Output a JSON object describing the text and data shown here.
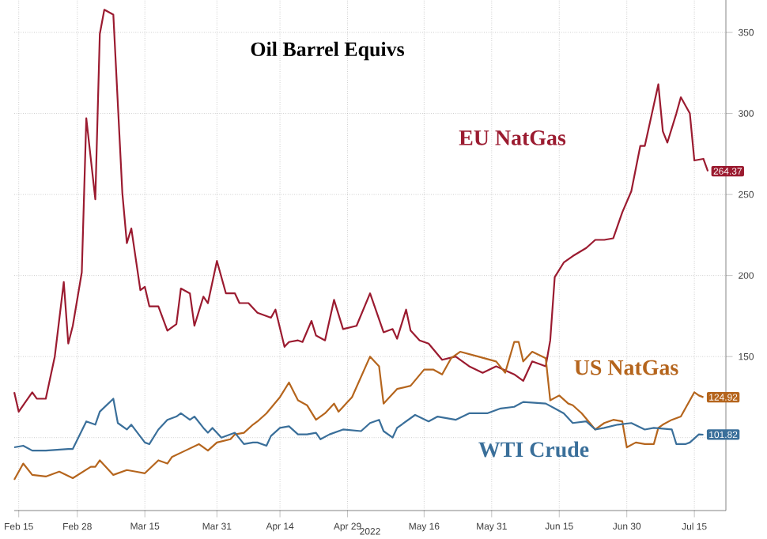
{
  "chart_data": {
    "type": "line",
    "title": "Oil Barrel Equivs",
    "xlabel": "2022",
    "grid": true,
    "line_style": "solid",
    "xlim": [
      "2022-02-14",
      "2022-07-22"
    ],
    "xticks": [
      {
        "value": "2022-02-15",
        "label": "Feb 15"
      },
      {
        "value": "2022-02-28",
        "label": "Feb 28"
      },
      {
        "value": "2022-03-15",
        "label": "Mar 15"
      },
      {
        "value": "2022-03-31",
        "label": "Mar 31"
      },
      {
        "value": "2022-04-14",
        "label": "Apr 14"
      },
      {
        "value": "2022-04-29",
        "label": "Apr 29"
      },
      {
        "value": "2022-05-16",
        "label": "May 16"
      },
      {
        "value": "2022-05-31",
        "label": "May 31"
      },
      {
        "value": "2022-06-15",
        "label": "Jun 15"
      },
      {
        "value": "2022-06-30",
        "label": "Jun 30"
      },
      {
        "value": "2022-07-15",
        "label": "Jul 15"
      }
    ],
    "ylim": [
      55,
      370
    ],
    "yticks": [
      {
        "value": 100,
        "label": null
      },
      150,
      200,
      250,
      300,
      350
    ],
    "series": [
      {
        "name": "EU NatGas",
        "color": "#9b1b30",
        "x": [
          "2022-02-14",
          "2022-02-15",
          "2022-02-18",
          "2022-02-19",
          "2022-02-21",
          "2022-02-23",
          "2022-02-25",
          "2022-02-26",
          "2022-02-27",
          "2022-03-01",
          "2022-03-02",
          "2022-03-04",
          "2022-03-05",
          "2022-03-06",
          "2022-03-08",
          "2022-03-10",
          "2022-03-11",
          "2022-03-12",
          "2022-03-14",
          "2022-03-15",
          "2022-03-16",
          "2022-03-18",
          "2022-03-20",
          "2022-03-22",
          "2022-03-23",
          "2022-03-25",
          "2022-03-26",
          "2022-03-28",
          "2022-03-29",
          "2022-03-31",
          "2022-04-02",
          "2022-04-04",
          "2022-04-05",
          "2022-04-07",
          "2022-04-09",
          "2022-04-12",
          "2022-04-13",
          "2022-04-15",
          "2022-04-16",
          "2022-04-18",
          "2022-04-19",
          "2022-04-21",
          "2022-04-22",
          "2022-04-24",
          "2022-04-26",
          "2022-04-28",
          "2022-05-01",
          "2022-05-04",
          "2022-05-07",
          "2022-05-09",
          "2022-05-10",
          "2022-05-12",
          "2022-05-13",
          "2022-05-15",
          "2022-05-17",
          "2022-05-20",
          "2022-05-23",
          "2022-05-26",
          "2022-05-29",
          "2022-06-01",
          "2022-06-05",
          "2022-06-07",
          "2022-06-09",
          "2022-06-12",
          "2022-06-13",
          "2022-06-14",
          "2022-06-16",
          "2022-06-18",
          "2022-06-21",
          "2022-06-23",
          "2022-06-25",
          "2022-06-27",
          "2022-06-29",
          "2022-07-01",
          "2022-07-03",
          "2022-07-04",
          "2022-07-07",
          "2022-07-08",
          "2022-07-09",
          "2022-07-11",
          "2022-07-12",
          "2022-07-14",
          "2022-07-15",
          "2022-07-17",
          "2022-07-18"
        ],
        "values": [
          128,
          116,
          128,
          124,
          124,
          150,
          196,
          158,
          169,
          202,
          297,
          247,
          349,
          364,
          361,
          251,
          220,
          229,
          191,
          193,
          181,
          181,
          166,
          170,
          192,
          189,
          169,
          187,
          183,
          209,
          189,
          189,
          183,
          183,
          177,
          174,
          179,
          156,
          159,
          160,
          159,
          172,
          163,
          160,
          185,
          167,
          169,
          189,
          165,
          167,
          161,
          179,
          166,
          160,
          158,
          148,
          150,
          144,
          140,
          144,
          139,
          135,
          147,
          144,
          160,
          199,
          208,
          212,
          217,
          222,
          222,
          223,
          239,
          252,
          280,
          280,
          318,
          289,
          282,
          300,
          310,
          300,
          271,
          272,
          264.37
        ],
        "value_labels": [
          null,
          null,
          null,
          null,
          null,
          null,
          null,
          null,
          null,
          null,
          null,
          null,
          null,
          null,
          null,
          null,
          null,
          null,
          null,
          null,
          null,
          null,
          null,
          null,
          null,
          null,
          null,
          null,
          null,
          null,
          null,
          null,
          null,
          null,
          null,
          null,
          null,
          null,
          null,
          null,
          null,
          null,
          null,
          null,
          null,
          null,
          null,
          null,
          null,
          null,
          null,
          null,
          null,
          null,
          null,
          null,
          null,
          null,
          null,
          null,
          null,
          null,
          null,
          null,
          null,
          null,
          null,
          null,
          null,
          null,
          null,
          null,
          null,
          null,
          null,
          null,
          null,
          null,
          null,
          null,
          null,
          null,
          null,
          null,
          "264.37"
        ]
      },
      {
        "name": "US NatGas",
        "color": "#b5651d",
        "x": [
          "2022-02-14",
          "2022-02-16",
          "2022-02-18",
          "2022-02-21",
          "2022-02-24",
          "2022-02-27",
          "2022-03-03",
          "2022-03-04",
          "2022-03-05",
          "2022-03-08",
          "2022-03-11",
          "2022-03-13",
          "2022-03-15",
          "2022-03-18",
          "2022-03-20",
          "2022-03-21",
          "2022-03-24",
          "2022-03-27",
          "2022-03-29",
          "2022-03-31",
          "2022-04-03",
          "2022-04-04",
          "2022-04-06",
          "2022-04-08",
          "2022-04-09",
          "2022-04-11",
          "2022-04-14",
          "2022-04-16",
          "2022-04-18",
          "2022-04-20",
          "2022-04-22",
          "2022-04-24",
          "2022-04-26",
          "2022-04-27",
          "2022-04-30",
          "2022-05-04",
          "2022-05-06",
          "2022-05-07",
          "2022-05-10",
          "2022-05-13",
          "2022-05-16",
          "2022-05-18",
          "2022-05-20",
          "2022-05-22",
          "2022-05-24",
          "2022-05-28",
          "2022-06-01",
          "2022-06-03",
          "2022-06-05",
          "2022-06-06",
          "2022-06-07",
          "2022-06-09",
          "2022-06-12",
          "2022-06-13",
          "2022-06-15",
          "2022-06-17",
          "2022-06-18",
          "2022-06-20",
          "2022-06-23",
          "2022-06-25",
          "2022-06-27",
          "2022-06-29",
          "2022-06-30",
          "2022-07-02",
          "2022-07-04",
          "2022-07-06",
          "2022-07-07",
          "2022-07-08",
          "2022-07-10",
          "2022-07-12",
          "2022-07-13",
          "2022-07-15",
          "2022-07-16",
          "2022-07-17"
        ],
        "values": [
          74,
          84,
          77,
          76,
          79,
          75,
          82,
          82,
          86,
          77,
          80,
          79,
          78,
          86,
          84,
          88,
          92,
          96,
          92,
          97,
          99,
          102,
          103,
          108,
          110,
          115,
          125,
          134,
          123,
          120,
          111,
          115,
          121,
          116,
          125,
          150,
          144,
          121,
          130,
          132,
          142,
          142,
          139,
          149,
          153,
          150,
          147,
          140,
          159,
          159,
          147,
          153,
          149,
          123,
          126,
          121,
          120,
          115,
          105,
          109,
          111,
          110,
          94,
          97,
          96,
          96,
          106,
          108,
          111,
          113,
          118,
          128,
          126,
          124.92
        ],
        "value_labels": [
          null,
          null,
          null,
          null,
          null,
          null,
          null,
          null,
          null,
          null,
          null,
          null,
          null,
          null,
          null,
          null,
          null,
          null,
          null,
          null,
          null,
          null,
          null,
          null,
          null,
          null,
          null,
          null,
          null,
          null,
          null,
          null,
          null,
          null,
          null,
          null,
          null,
          null,
          null,
          null,
          null,
          null,
          null,
          null,
          null,
          null,
          null,
          null,
          null,
          null,
          null,
          null,
          null,
          null,
          null,
          null,
          null,
          null,
          null,
          null,
          null,
          null,
          null,
          null,
          null,
          null,
          null,
          null,
          null,
          null,
          null,
          null,
          null,
          "124.92"
        ]
      },
      {
        "name": "WTI Crude",
        "color": "#3a6f9a",
        "x": [
          "2022-02-14",
          "2022-02-16",
          "2022-02-18",
          "2022-02-21",
          "2022-02-26",
          "2022-02-27",
          "2022-03-02",
          "2022-03-04",
          "2022-03-05",
          "2022-03-08",
          "2022-03-09",
          "2022-03-11",
          "2022-03-12",
          "2022-03-15",
          "2022-03-16",
          "2022-03-18",
          "2022-03-20",
          "2022-03-22",
          "2022-03-23",
          "2022-03-25",
          "2022-03-26",
          "2022-03-28",
          "2022-03-29",
          "2022-03-30",
          "2022-04-01",
          "2022-04-04",
          "2022-04-06",
          "2022-04-08",
          "2022-04-09",
          "2022-04-11",
          "2022-04-12",
          "2022-04-14",
          "2022-04-16",
          "2022-04-18",
          "2022-04-20",
          "2022-04-22",
          "2022-04-23",
          "2022-04-25",
          "2022-04-28",
          "2022-05-02",
          "2022-05-04",
          "2022-05-06",
          "2022-05-07",
          "2022-05-09",
          "2022-05-10",
          "2022-05-14",
          "2022-05-17",
          "2022-05-19",
          "2022-05-23",
          "2022-05-26",
          "2022-05-30",
          "2022-06-02",
          "2022-06-05",
          "2022-06-07",
          "2022-06-12",
          "2022-06-14",
          "2022-06-16",
          "2022-06-18",
          "2022-06-21",
          "2022-06-23",
          "2022-06-25",
          "2022-06-28",
          "2022-07-01",
          "2022-07-04",
          "2022-07-06",
          "2022-07-10",
          "2022-07-11",
          "2022-07-13",
          "2022-07-14",
          "2022-07-16",
          "2022-07-17"
        ],
        "values": [
          94,
          95,
          92,
          92,
          93,
          93,
          110,
          108,
          116,
          124,
          109,
          105,
          108,
          97,
          96,
          105,
          111,
          113,
          115,
          111,
          113,
          106,
          103,
          106,
          100,
          103,
          96,
          97,
          97,
          95,
          101,
          106,
          107,
          102,
          102,
          103,
          99,
          102,
          105,
          104,
          109,
          111,
          104,
          100,
          106,
          114,
          110,
          113,
          111,
          115,
          115,
          118,
          119,
          122,
          121,
          118,
          115,
          109,
          110,
          105,
          106,
          108,
          109,
          105,
          106,
          105,
          96,
          96,
          97,
          102,
          101.82
        ],
        "value_labels": [
          null,
          null,
          null,
          null,
          null,
          null,
          null,
          null,
          null,
          null,
          null,
          null,
          null,
          null,
          null,
          null,
          null,
          null,
          null,
          null,
          null,
          null,
          null,
          null,
          null,
          null,
          null,
          null,
          null,
          null,
          null,
          null,
          null,
          null,
          null,
          null,
          null,
          null,
          null,
          null,
          null,
          null,
          null,
          null,
          null,
          null,
          null,
          null,
          null,
          null,
          null,
          null,
          null,
          null,
          null,
          null,
          null,
          null,
          null,
          null,
          null,
          null,
          null,
          null,
          null,
          null,
          null,
          null,
          null,
          null,
          "101.82"
        ]
      }
    ]
  }
}
